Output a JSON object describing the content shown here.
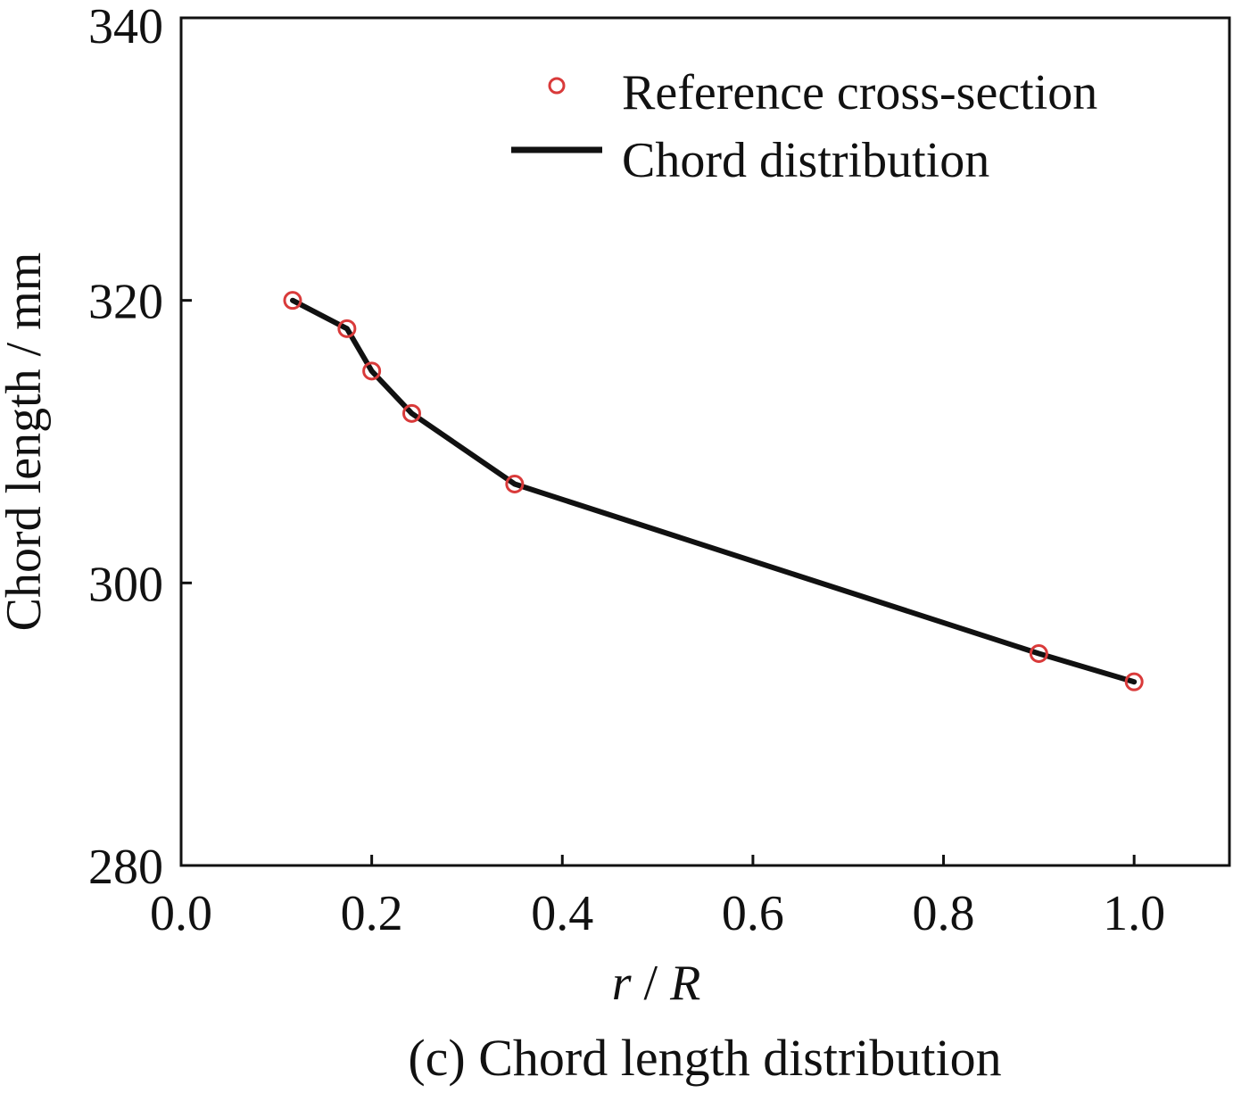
{
  "chart_data": {
    "type": "line",
    "title": "",
    "caption": "(c) Chord length distribution",
    "xlabel": {
      "italic_var": "r",
      "separator": " / ",
      "italic_var2": "R"
    },
    "ylabel": "Chord length / mm",
    "xlim": [
      0.0,
      1.1
    ],
    "ylim": [
      280,
      340
    ],
    "xticks": [
      "0.0",
      "0.2",
      "0.4",
      "0.6",
      "0.8",
      "1.0"
    ],
    "xtick_values": [
      0.0,
      0.2,
      0.4,
      0.6,
      0.8,
      1.0
    ],
    "yticks": [
      "280",
      "300",
      "320",
      "340"
    ],
    "ytick_values": [
      280,
      300,
      320,
      340
    ],
    "grid": false,
    "legend_position": "top-right",
    "series": [
      {
        "name": "Reference cross-section",
        "kind": "markers",
        "marker": "open-circle",
        "color": "#d93a3a",
        "x": [
          0.117,
          0.174,
          0.2,
          0.242,
          0.35,
          0.9,
          1.0
        ],
        "y": [
          320,
          318,
          315,
          312,
          307,
          295,
          293
        ]
      },
      {
        "name": "Chord distribution",
        "kind": "line",
        "color": "#111111",
        "x": [
          0.117,
          0.174,
          0.2,
          0.242,
          0.35,
          0.9,
          1.0
        ],
        "y": [
          320,
          318,
          315,
          312,
          307,
          295,
          293
        ]
      }
    ]
  }
}
